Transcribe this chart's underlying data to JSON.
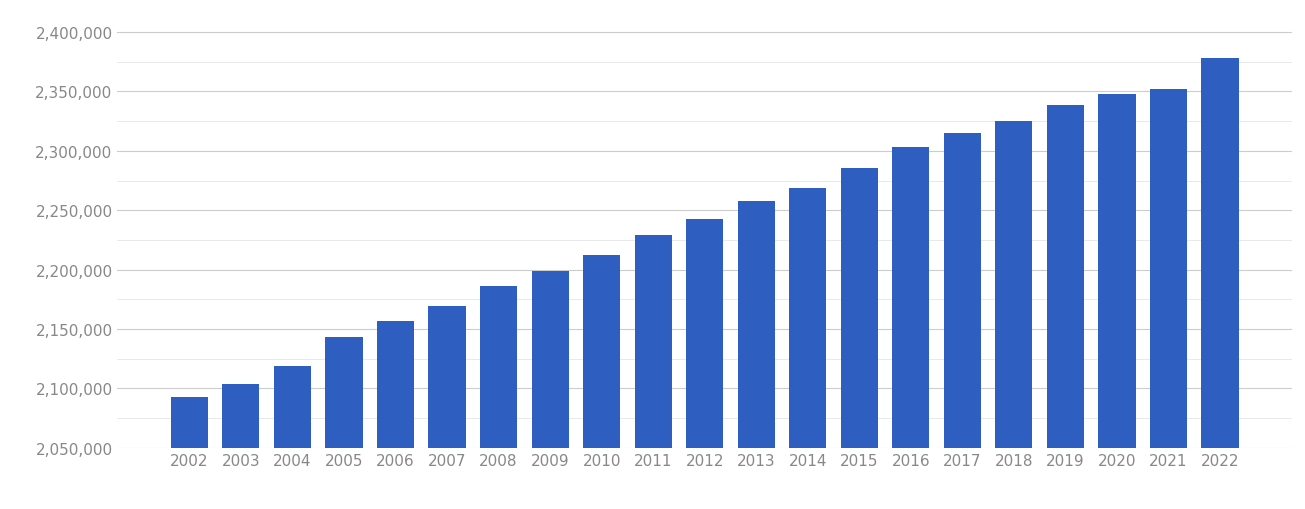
{
  "years": [
    2002,
    2003,
    2004,
    2005,
    2006,
    2007,
    2008,
    2009,
    2010,
    2011,
    2012,
    2013,
    2014,
    2015,
    2016,
    2017,
    2018,
    2019,
    2020,
    2021,
    2022
  ],
  "values": [
    2093000,
    2104000,
    2119000,
    2143000,
    2157000,
    2169000,
    2186000,
    2199000,
    2212000,
    2229000,
    2243000,
    2258000,
    2269000,
    2286000,
    2303000,
    2315000,
    2325000,
    2339000,
    2348000,
    2352000,
    2378000
  ],
  "bar_color": "#2E5EBF",
  "ylim_min": 2050000,
  "ylim_max": 2415000,
  "ytick_major": [
    2050000,
    2100000,
    2150000,
    2200000,
    2250000,
    2300000,
    2350000,
    2400000
  ],
  "ytick_minor": [
    2050000,
    2075000,
    2100000,
    2125000,
    2150000,
    2175000,
    2200000,
    2225000,
    2250000,
    2275000,
    2300000,
    2325000,
    2350000,
    2375000,
    2400000
  ],
  "background_color": "#ffffff",
  "grid_color_major": "#cccccc",
  "grid_color_minor": "#e5e5e5",
  "tick_color": "#888888",
  "tick_fontsize": 11,
  "bar_width": 0.72
}
